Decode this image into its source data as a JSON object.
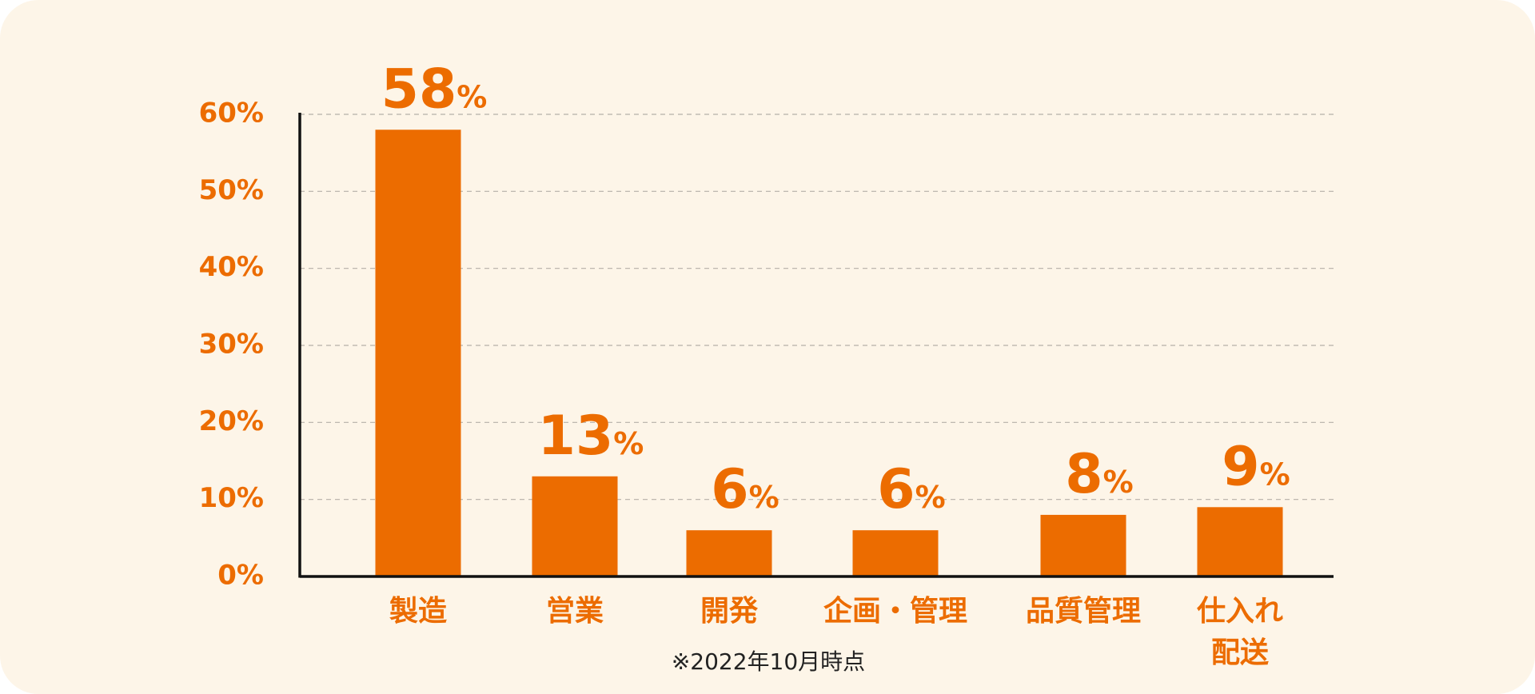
{
  "chart_data": {
    "type": "bar",
    "categories": [
      "製造",
      "営業",
      "開発",
      "企画・管理",
      "品質管理",
      "仕入れ\n配送"
    ],
    "values": [
      58,
      13,
      6,
      6,
      8,
      9
    ],
    "value_labels": [
      "58%",
      "13%",
      "6%",
      "6%",
      "8%",
      "9%"
    ],
    "color": "#ec6c00",
    "ylim": [
      0,
      60
    ],
    "yticks": [
      {
        "value": 0,
        "label": "0%"
      },
      {
        "value": 10,
        "label": "10%"
      },
      {
        "value": 20,
        "label": "20%"
      },
      {
        "value": 30,
        "label": "30%"
      },
      {
        "value": 40,
        "label": "40%"
      },
      {
        "value": 50,
        "label": "50%"
      },
      {
        "value": 60,
        "label": "60%"
      }
    ],
    "grid": true,
    "note": "※2022年10月時点"
  }
}
